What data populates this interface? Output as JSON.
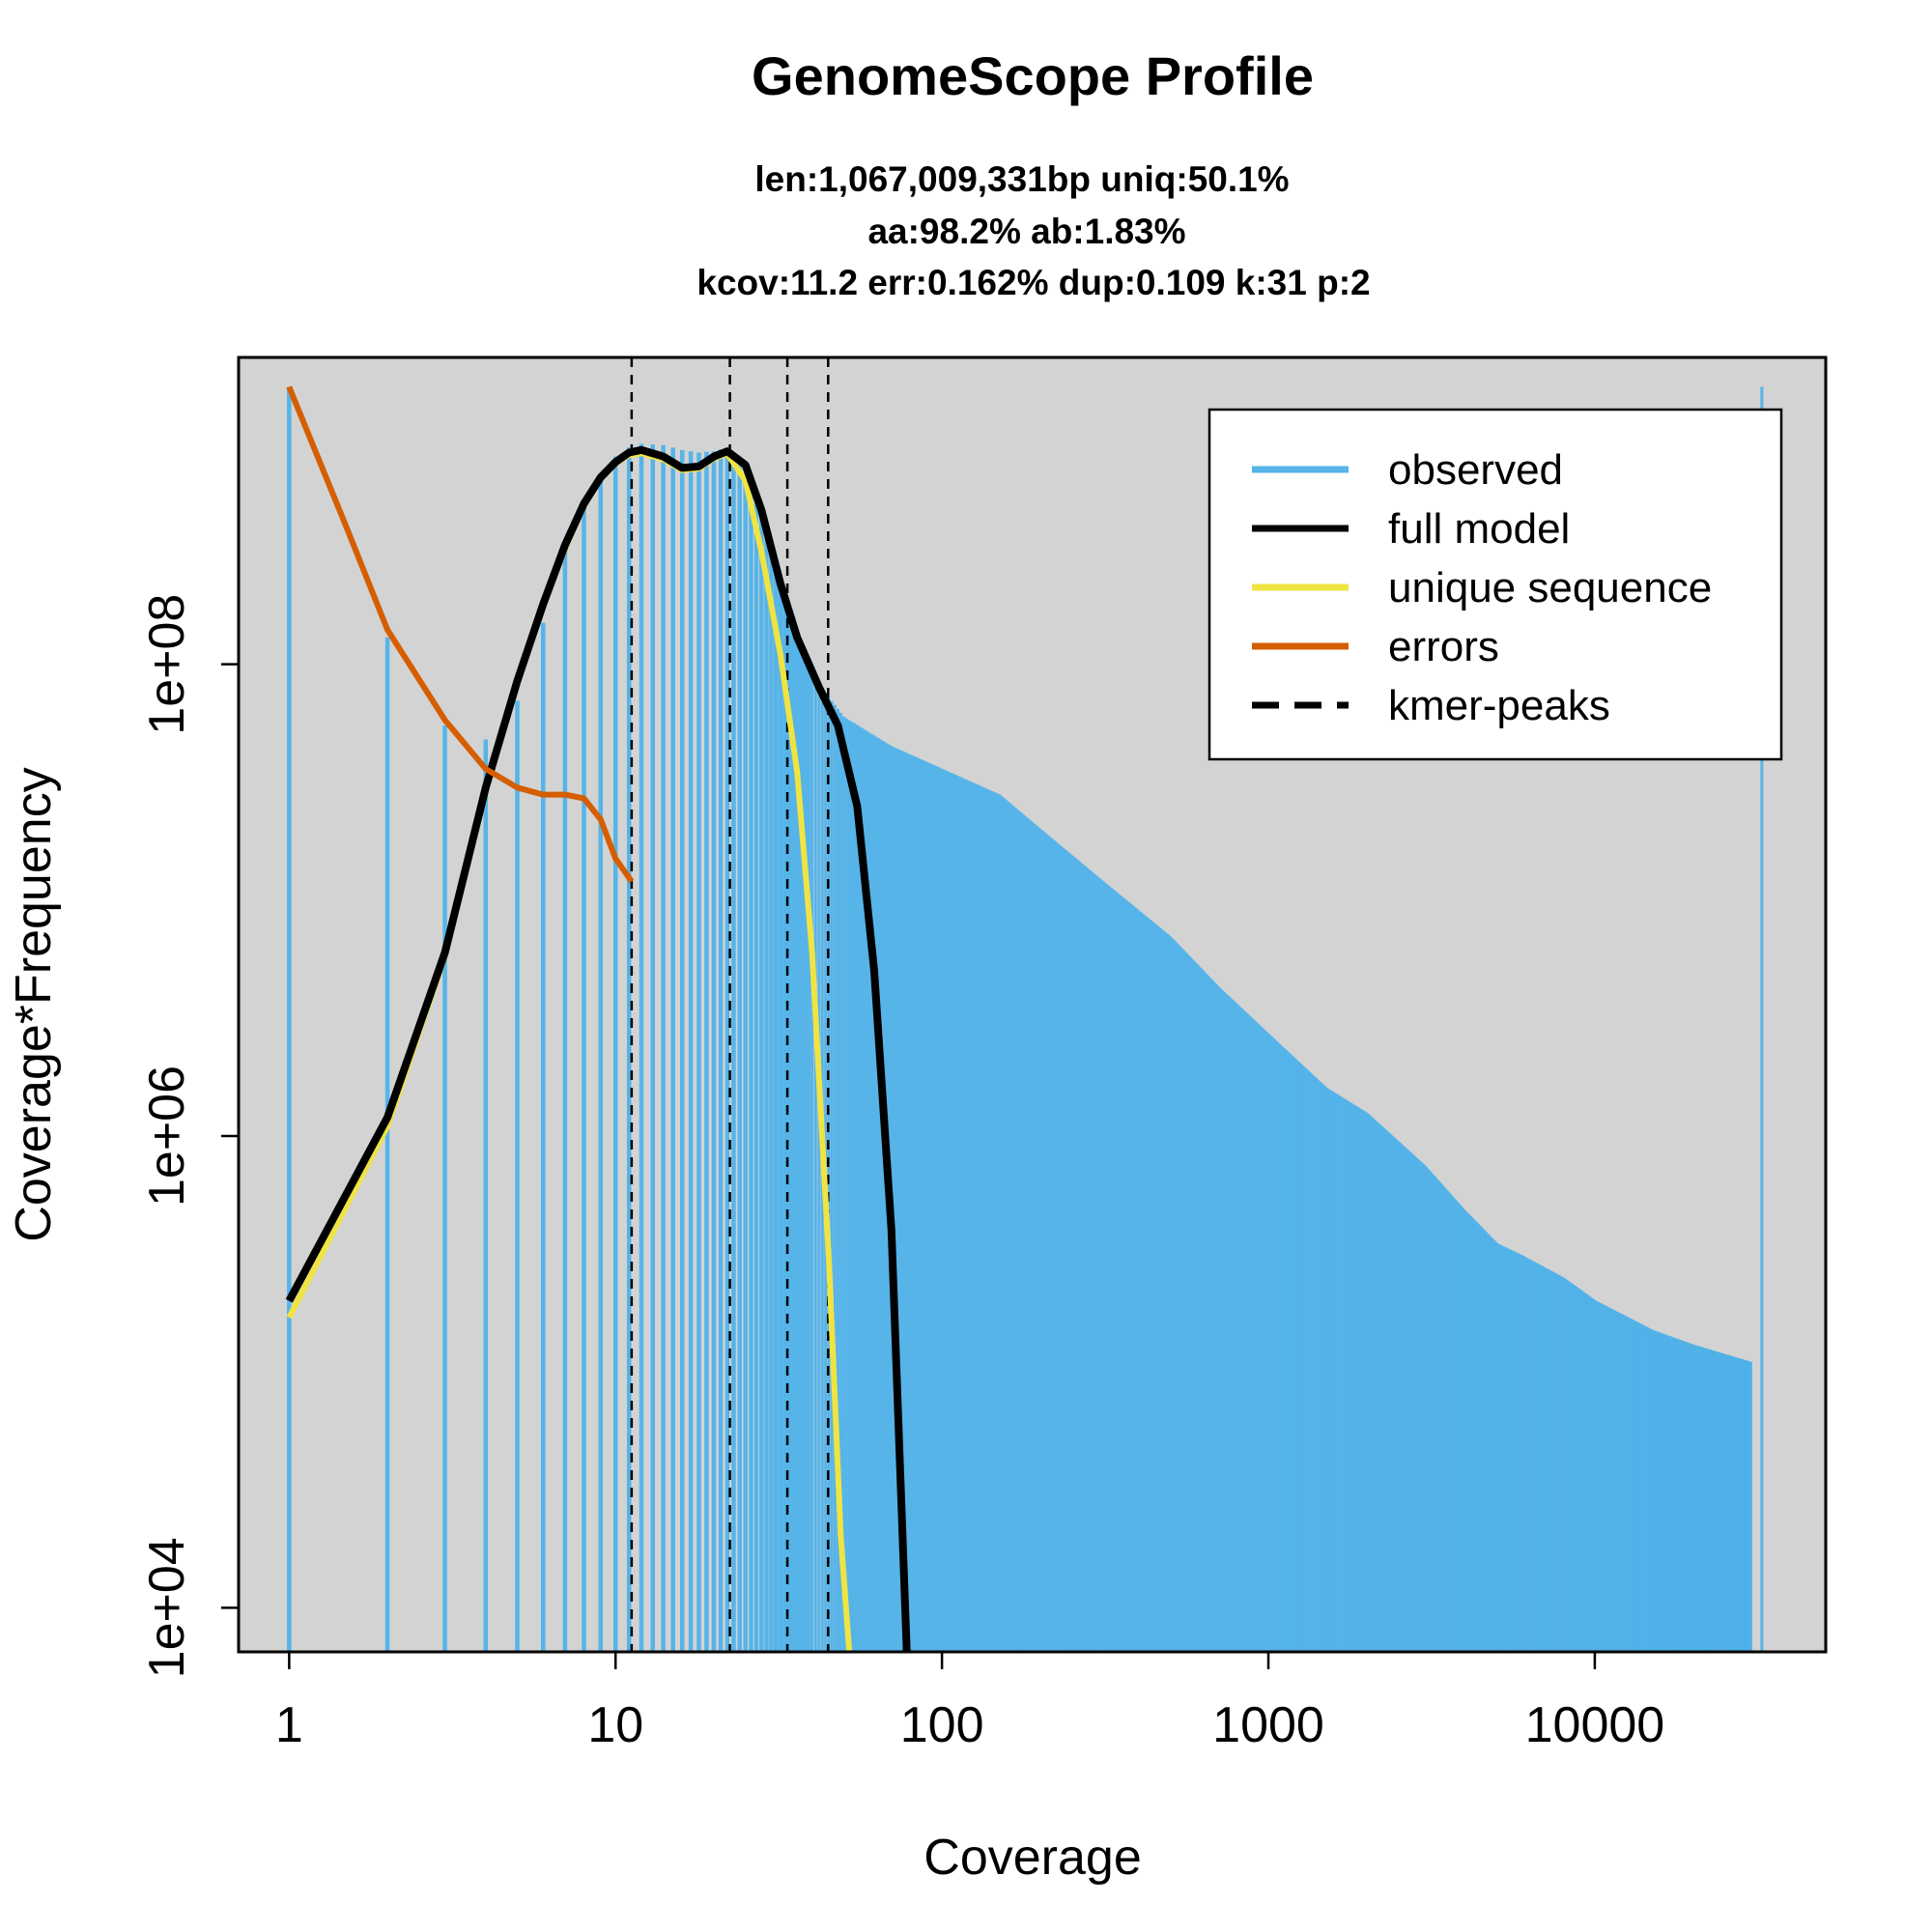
{
  "chart_data": {
    "type": "line",
    "title": "GenomeScope Profile",
    "subtitle_lines": [
      "len:1,067,009,331bp uniq:50.1%",
      "aa:98.2% ab:1.83%",
      "kcov:11.2 err:0.162%  dup:0.109  k:31 p:2"
    ],
    "xlabel": "Coverage",
    "ylabel": "Coverage*Frequency",
    "x_scale": "log",
    "y_scale": "log",
    "xlim": [
      0.7,
      51000
    ],
    "ylim": [
      6500,
      2000000000
    ],
    "x_ticks": [
      {
        "value": 1,
        "label": "1"
      },
      {
        "value": 10,
        "label": "10"
      },
      {
        "value": 100,
        "label": "100"
      },
      {
        "value": 1000,
        "label": "1000"
      },
      {
        "value": 10000,
        "label": "10000"
      }
    ],
    "y_ticks": [
      {
        "value": 10000,
        "label": "1e+04"
      },
      {
        "value": 1000000,
        "label": "1e+06"
      },
      {
        "value": 100000000,
        "label": "1e+08"
      }
    ],
    "background": "#d3d3d3",
    "grid": false,
    "legend_position": "top-right",
    "legend": [
      {
        "label": "observed",
        "color": "#56b4e9",
        "style": "solid"
      },
      {
        "label": "full model",
        "color": "#000000",
        "style": "solid"
      },
      {
        "label": "unique sequence",
        "color": "#f0e442",
        "style": "solid"
      },
      {
        "label": "errors",
        "color": "#d55e00",
        "style": "solid"
      },
      {
        "label": "kmer-peaks",
        "color": "#000000",
        "style": "dashed"
      }
    ],
    "kmer_peaks": [
      11.2,
      22.4,
      33.6,
      44.8
    ],
    "series": [
      {
        "name": "observed",
        "kind": "histogram",
        "color": "#56b4e9",
        "points": [
          [
            1,
            1500000000
          ],
          [
            2,
            130000000
          ],
          [
            3,
            55000000
          ],
          [
            4,
            48000000
          ],
          [
            5,
            70000000
          ],
          [
            6,
            150000000
          ],
          [
            7,
            330000000
          ],
          [
            8,
            470000000
          ],
          [
            9,
            620000000
          ],
          [
            10,
            760000000
          ],
          [
            11,
            830000000
          ],
          [
            12,
            860000000
          ],
          [
            14,
            850000000
          ],
          [
            16,
            810000000
          ],
          [
            18,
            790000000
          ],
          [
            20,
            800000000
          ],
          [
            22,
            830000000
          ],
          [
            24,
            750000000
          ],
          [
            28,
            420000000
          ],
          [
            33,
            180000000
          ],
          [
            40,
            90000000
          ],
          [
            50,
            60000000
          ],
          [
            70,
            45000000
          ],
          [
            100,
            36000000
          ],
          [
            150,
            28000000
          ],
          [
            200,
            20000000
          ],
          [
            300,
            12500000
          ],
          [
            500,
            7000000
          ],
          [
            700,
            4300000
          ],
          [
            1000,
            2700000
          ],
          [
            1500,
            1600000
          ],
          [
            2000,
            1250000
          ],
          [
            3000,
            750000
          ],
          [
            4000,
            480000
          ],
          [
            5000,
            350000
          ],
          [
            6000,
            310000
          ],
          [
            8000,
            250000
          ],
          [
            10000,
            200000
          ],
          [
            15000,
            150000
          ],
          [
            20000,
            130000
          ],
          [
            30000,
            110000
          ],
          [
            32500,
            1500000000
          ]
        ]
      },
      {
        "name": "full model",
        "color": "#000000",
        "points": [
          [
            1,
            200000
          ],
          [
            2,
            1200000
          ],
          [
            3,
            6000000
          ],
          [
            4,
            30000000
          ],
          [
            5,
            85000000
          ],
          [
            6,
            180000000
          ],
          [
            7,
            320000000
          ],
          [
            8,
            480000000
          ],
          [
            9,
            620000000
          ],
          [
            10,
            720000000
          ],
          [
            11,
            790000000
          ],
          [
            12,
            810000000
          ],
          [
            14,
            760000000
          ],
          [
            16,
            680000000
          ],
          [
            18,
            690000000
          ],
          [
            20,
            760000000
          ],
          [
            22,
            800000000
          ],
          [
            25,
            700000000
          ],
          [
            28,
            450000000
          ],
          [
            32,
            220000000
          ],
          [
            36,
            130000000
          ],
          [
            42,
            80000000
          ],
          [
            48,
            55000000
          ],
          [
            55,
            25000000
          ],
          [
            62,
            5000000
          ],
          [
            70,
            400000
          ],
          [
            78,
            6500
          ]
        ]
      },
      {
        "name": "unique sequence",
        "color": "#f0e442",
        "points": [
          [
            1,
            170000
          ],
          [
            2,
            1100000
          ],
          [
            3,
            5800000
          ],
          [
            4,
            29000000
          ],
          [
            5,
            83000000
          ],
          [
            6,
            175000000
          ],
          [
            7,
            310000000
          ],
          [
            8,
            470000000
          ],
          [
            9,
            610000000
          ],
          [
            10,
            710000000
          ],
          [
            11,
            770000000
          ],
          [
            12,
            785000000
          ],
          [
            14,
            740000000
          ],
          [
            16,
            665000000
          ],
          [
            18,
            675000000
          ],
          [
            20,
            745000000
          ],
          [
            22,
            780000000
          ],
          [
            25,
            600000000
          ],
          [
            28,
            300000000
          ],
          [
            32,
            110000000
          ],
          [
            36,
            35000000
          ],
          [
            40,
            6000000
          ],
          [
            45,
            300000
          ],
          [
            49,
            20000
          ],
          [
            52,
            6500
          ]
        ]
      },
      {
        "name": "errors",
        "color": "#d55e00",
        "points": [
          [
            1,
            1500000000
          ],
          [
            1.5,
            380000000
          ],
          [
            2,
            140000000
          ],
          [
            3,
            58000000
          ],
          [
            4,
            36000000
          ],
          [
            5,
            30000000
          ],
          [
            6,
            28000000
          ],
          [
            7,
            28000000
          ],
          [
            8,
            27000000
          ],
          [
            9,
            22000000
          ],
          [
            10,
            15000000
          ],
          [
            11.2,
            12000000
          ]
        ]
      }
    ]
  }
}
